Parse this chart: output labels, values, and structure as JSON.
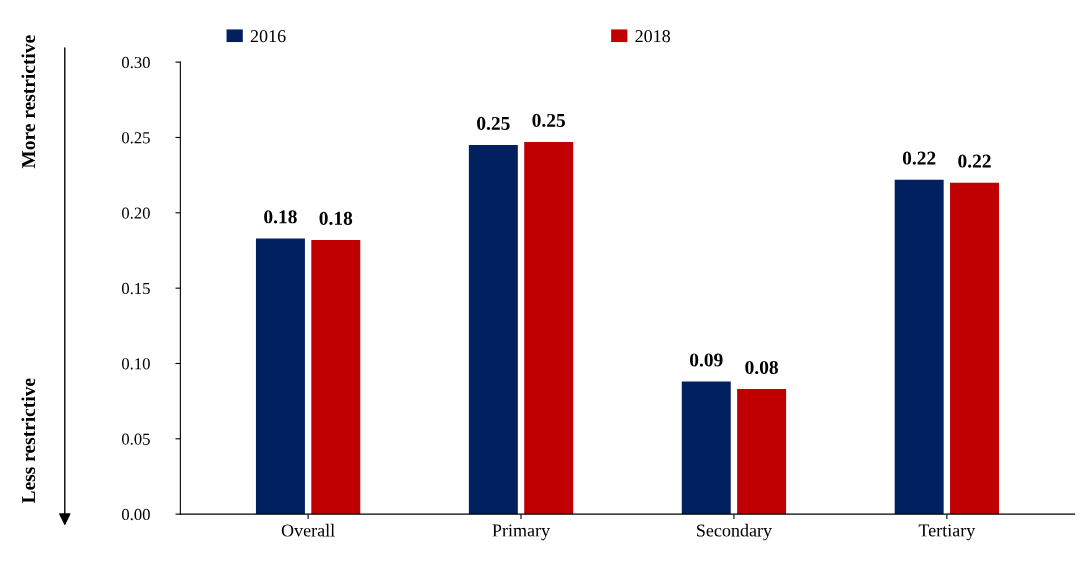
{
  "chart_data": {
    "type": "bar",
    "categories": [
      "Overall",
      "Primary",
      "Secondary",
      "Tertiary"
    ],
    "series": [
      {
        "name": "2016",
        "color": "#002060",
        "values": [
          0.183,
          0.245,
          0.088,
          0.222
        ],
        "value_labels": [
          "0.18",
          "0.25",
          "0.09",
          "0.22"
        ]
      },
      {
        "name": "2018",
        "color": "#c00000",
        "values": [
          0.182,
          0.247,
          0.083,
          0.22
        ],
        "value_labels": [
          "0.18",
          "0.25",
          "0.08",
          "0.22"
        ]
      }
    ],
    "ylim": [
      0,
      0.3
    ],
    "yticks": [
      {
        "value": 0,
        "label": "0.00"
      },
      {
        "value": 0.05,
        "label": "0.05"
      },
      {
        "value": 0.1,
        "label": "0.10"
      },
      {
        "value": 0.15,
        "label": "0.15"
      },
      {
        "value": 0.2,
        "label": "0.20"
      },
      {
        "value": 0.25,
        "label": "0.25"
      },
      {
        "value": 0.3,
        "label": "0.30"
      }
    ],
    "grid": false,
    "legend": "top",
    "annotations": [
      "More restrictive",
      "Less restrictive"
    ]
  }
}
